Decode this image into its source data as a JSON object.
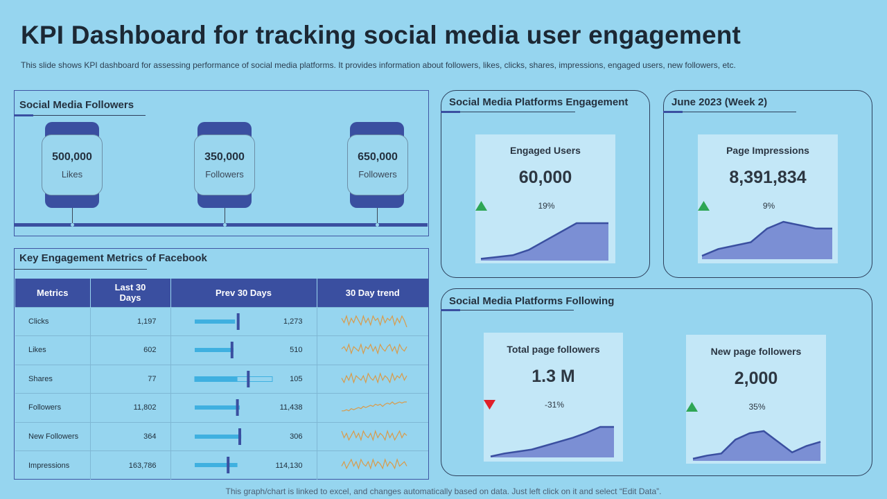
{
  "header": {
    "title": "KPI Dashboard for tracking social media user engagement",
    "subtitle": "This slide shows KPI dashboard for assessing performance of social media platforms. It provides information about followers, likes, clicks, shares, impressions, engaged users, new followers, etc."
  },
  "footer": "This graph/chart is linked to excel,  and changes automatically based on data. Just left click on it and select “Edit Data”.",
  "followers_panel": {
    "title": "Social Media Followers",
    "cards": [
      {
        "value": "500,000",
        "label": "Likes"
      },
      {
        "value": "350,000",
        "label": "Followers"
      },
      {
        "value": "650,000",
        "label": "Followers"
      }
    ]
  },
  "metrics_panel": {
    "title": "Key Engagement Metrics of Facebook",
    "headers": [
      "Metrics",
      "Last 30 Days",
      "Prev 30 Days",
      "30 Day trend"
    ],
    "rows": [
      {
        "metric": "Clicks",
        "last30": "1,197",
        "prev30": "1,273",
        "bar_fill": 0.52,
        "marker": 0.56,
        "trend": [
          5,
          3,
          6,
          2,
          5,
          3,
          6,
          4,
          2,
          6,
          3,
          5,
          2,
          6,
          4,
          5,
          2,
          6,
          3,
          5,
          4,
          6,
          2,
          5,
          3,
          6,
          4,
          1
        ]
      },
      {
        "metric": "Likes",
        "last30": "602",
        "prev30": "510",
        "bar_fill": 0.5,
        "marker": 0.48,
        "trend": [
          4,
          5,
          3,
          6,
          2,
          5,
          4,
          3,
          6,
          2,
          5,
          4,
          6,
          3,
          5,
          2,
          6,
          4,
          3,
          5,
          6,
          3,
          5,
          2,
          6,
          4,
          3,
          5
        ]
      },
      {
        "metric": "Shares",
        "last30": "77",
        "prev30": "105",
        "bar_fill": 0.55,
        "marker": 0.69,
        "trend": [
          4,
          2,
          5,
          3,
          6,
          2,
          5,
          4,
          3,
          5,
          2,
          6,
          4,
          3,
          5,
          2,
          6,
          3,
          5,
          4,
          2,
          6,
          3,
          5,
          4,
          6,
          3,
          5
        ]
      },
      {
        "metric": "Followers",
        "last30": "11,802",
        "prev30": "11,438",
        "bar_fill": 0.58,
        "marker": 0.55,
        "trend": [
          2,
          2,
          2.5,
          2,
          3,
          2.5,
          3,
          3.5,
          3,
          4,
          3.5,
          4,
          4.5,
          4,
          5,
          4.5,
          5,
          4,
          5,
          5.5,
          5,
          6,
          5,
          5.5,
          6,
          5.5,
          6,
          6
        ]
      },
      {
        "metric": "New Followers",
        "last30": "364",
        "prev30": "306",
        "bar_fill": 0.6,
        "marker": 0.58,
        "trend": [
          6,
          3,
          5,
          2,
          4,
          6,
          3,
          5,
          2,
          6,
          4,
          3,
          5,
          2,
          6,
          3,
          5,
          4,
          2,
          6,
          3,
          5,
          2,
          4,
          6,
          3,
          5,
          4
        ]
      },
      {
        "metric": "Impressions",
        "last30": "163,786",
        "prev30": "114,130",
        "bar_fill": 0.55,
        "marker": 0.43,
        "trend": [
          3,
          5,
          2,
          4,
          6,
          3,
          5,
          2,
          6,
          4,
          3,
          5,
          2,
          6,
          3,
          5,
          4,
          2,
          6,
          3,
          5,
          4,
          2,
          6,
          3,
          4,
          5,
          3
        ]
      }
    ]
  },
  "engagement_panel": {
    "title": "Social Media Platforms Engagement",
    "card": {
      "label": "Engaged Users",
      "value": "60,000",
      "pct": "19%",
      "direction": "up",
      "trend": [
        1,
        2,
        3,
        6,
        11,
        16,
        21,
        21,
        21
      ]
    }
  },
  "week_panel": {
    "title": "June 2023 (Week 2)",
    "card": {
      "label": "Page Impressions",
      "value": "8,391,834",
      "pct": "9%",
      "direction": "up",
      "trend": [
        2,
        6,
        8,
        10,
        18,
        22,
        20,
        18,
        18
      ]
    }
  },
  "following_panel": {
    "title": "Social Media Platforms Following",
    "cards": [
      {
        "label": "Total page followers",
        "value": "1.3 M",
        "pct": "-31%",
        "direction": "down",
        "trend": [
          1,
          4,
          6,
          8,
          12,
          16,
          20,
          25,
          31,
          31
        ]
      },
      {
        "label": "New page followers",
        "value": "2,000",
        "pct": "35%",
        "direction": "up",
        "trend": [
          2,
          5,
          7,
          20,
          26,
          28,
          18,
          8,
          14,
          18
        ]
      }
    ]
  },
  "colors": {
    "background": "#96d5ef",
    "accent": "#3a4fa0",
    "card": "#c3e7f7",
    "area_fill": "#7b8fd4",
    "trend_line": "#d99b4a",
    "up": "#2ea655",
    "down": "#e0202a"
  }
}
